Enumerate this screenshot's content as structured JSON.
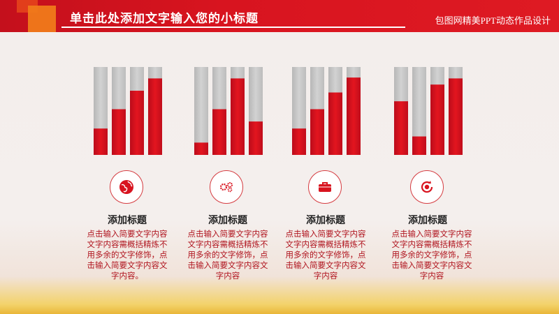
{
  "header": {
    "title": "单击此处添加文字输入您的小标题",
    "brand": "包图网精美PPT动态作品设计"
  },
  "colors": {
    "accent": "#d8141f",
    "track": "#c4c4c4",
    "desc_text": "#b0141e"
  },
  "chart_data": [
    {
      "type": "bar",
      "values": [
        0.3,
        0.52,
        0.73,
        0.87
      ],
      "ylim": [
        0,
        1
      ]
    },
    {
      "type": "bar",
      "values": [
        0.14,
        0.52,
        0.87,
        0.38
      ],
      "ylim": [
        0,
        1
      ]
    },
    {
      "type": "bar",
      "values": [
        0.3,
        0.52,
        0.71,
        0.88
      ],
      "ylim": [
        0,
        1
      ]
    },
    {
      "type": "bar",
      "values": [
        0.61,
        0.21,
        0.8,
        0.87
      ],
      "ylim": [
        0,
        1
      ]
    }
  ],
  "items": [
    {
      "icon": "globe-icon",
      "title": "添加标题",
      "desc": "点击输入简要文字内容文字内容需概括精炼不用多余的文字修饰，点击输入简要文字内容文字内容。"
    },
    {
      "icon": "gears-icon",
      "title": "添加标题",
      "desc": "点击输入简要文字内容文字内容需概括精炼不用多余的文字修饰，点击输入简要文字内容文字内容"
    },
    {
      "icon": "toolbox-icon",
      "title": "添加标题",
      "desc": "点击输入简要文字内容文字内容需概括精炼不用多余的文字修饰，点击输入简要文字内容文字内容"
    },
    {
      "icon": "refresh-dollar-icon",
      "title": "添加标题",
      "desc": "点击输入简要文字内容文字内容需概括精炼不用多余的文字修饰，点击输入简要文字内容文字内容"
    }
  ]
}
